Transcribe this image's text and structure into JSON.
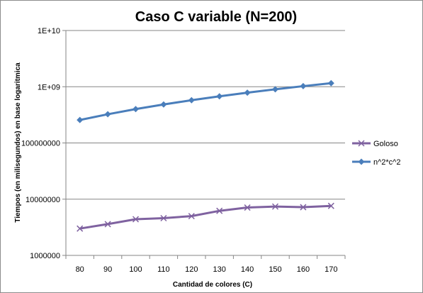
{
  "chart_data": {
    "type": "line",
    "title": "Caso  C variable (N=200)",
    "xlabel": "Cantidad de colores (C)",
    "ylabel": "Tiempos (en milisegundos) en base logaritmica",
    "categories": [
      "80",
      "90",
      "100",
      "110",
      "120",
      "130",
      "140",
      "150",
      "160",
      "170"
    ],
    "yscale": "log",
    "ylim": [
      1000000,
      10000000000
    ],
    "yticks": [
      {
        "value": 1000000,
        "label": "1000000"
      },
      {
        "value": 10000000,
        "label": "10000000"
      },
      {
        "value": 100000000,
        "label": "100000000"
      },
      {
        "value": 1000000000,
        "label": "1E+09"
      },
      {
        "value": 10000000000,
        "label": "1E+10"
      }
    ],
    "grid": true,
    "legend_position": "right",
    "series": [
      {
        "name": "Goloso",
        "color": "#7f62a0",
        "marker": "x",
        "values": [
          3000000,
          3600000,
          4400000,
          4600000,
          5000000,
          6200000,
          7100000,
          7400000,
          7200000,
          7600000
        ]
      },
      {
        "name": "n^2*c^2",
        "color": "#4a7ebb",
        "marker": "diamond",
        "values": [
          256000000,
          324000000,
          400000000,
          484000000,
          576000000,
          676000000,
          784000000,
          900000000,
          1024000000,
          1156000000
        ]
      }
    ]
  }
}
